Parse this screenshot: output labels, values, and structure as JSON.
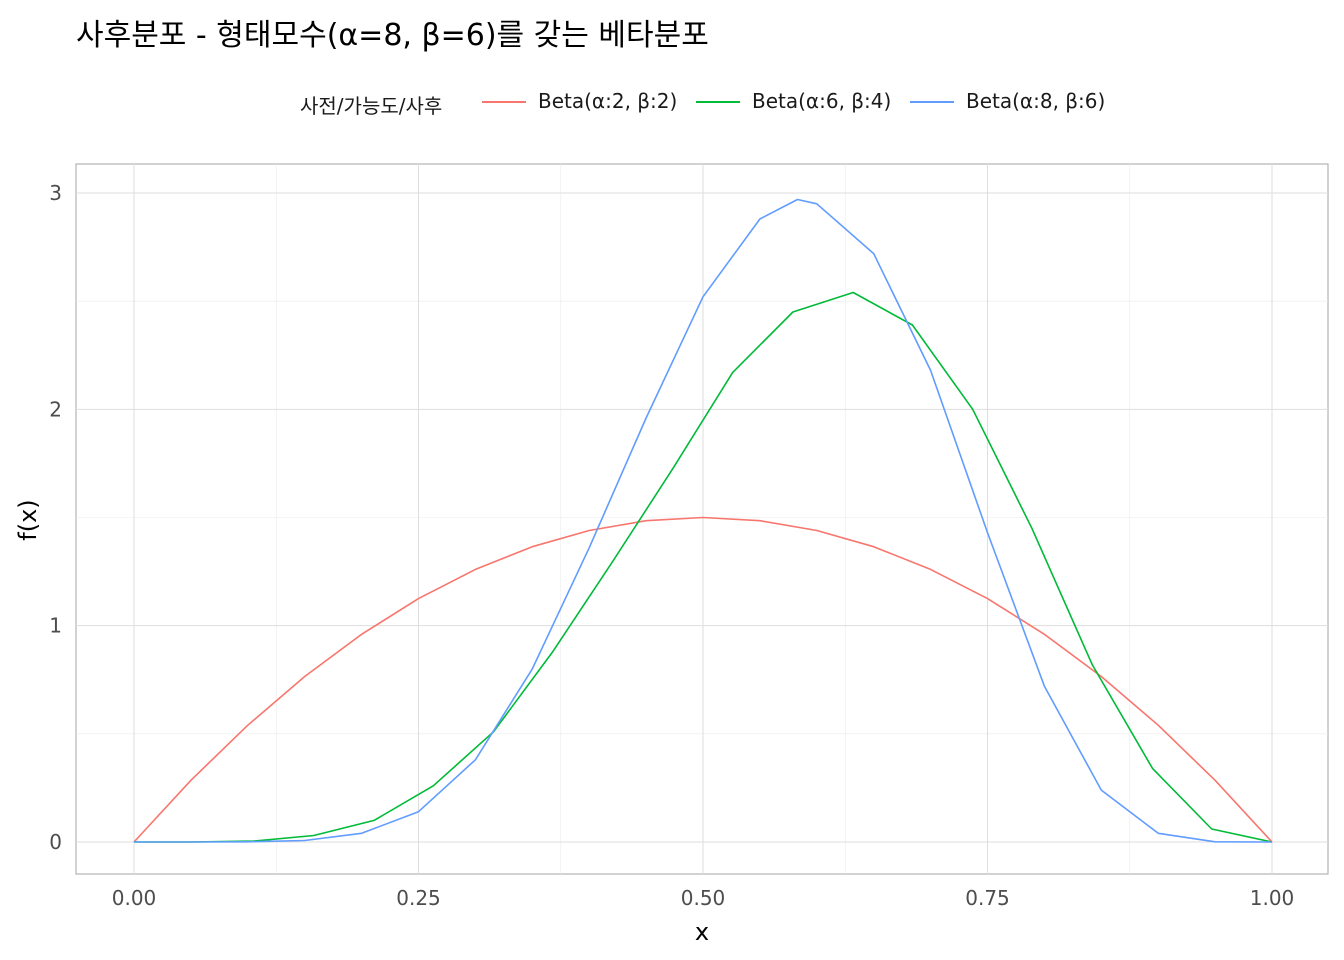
{
  "chart_data": {
    "type": "line",
    "title": "사후분포 - 형태모수(α=8, β=6)를 갖는 베타분포",
    "xlabel": "x",
    "ylabel": "f(x)",
    "xlim": [
      0,
      1
    ],
    "ylim": [
      0,
      3
    ],
    "x_ticks": [
      "0.00",
      "0.25",
      "0.50",
      "0.75",
      "1.00"
    ],
    "y_ticks": [
      "0",
      "1",
      "2",
      "3"
    ],
    "grid": true,
    "legend": {
      "title": "사전/가능도/사후",
      "placement": "top"
    },
    "series": [
      {
        "name": "Beta(α:2, β:2)",
        "color": "#F8766D",
        "x": [
          0,
          0.05,
          0.1,
          0.15,
          0.2,
          0.25,
          0.3,
          0.35,
          0.4,
          0.45,
          0.5,
          0.55,
          0.6,
          0.65,
          0.7,
          0.75,
          0.8,
          0.85,
          0.9,
          0.95,
          1
        ],
        "y": [
          0,
          0.285,
          0.54,
          0.765,
          0.96,
          1.125,
          1.26,
          1.365,
          1.44,
          1.485,
          1.5,
          1.485,
          1.44,
          1.365,
          1.26,
          1.125,
          0.96,
          0.765,
          0.54,
          0.285,
          0
        ]
      },
      {
        "name": "Beta(α:6, β:4)",
        "color": "#00BA38",
        "x": [
          0,
          0.05,
          0.105,
          0.158,
          0.211,
          0.263,
          0.316,
          0.368,
          0.421,
          0.474,
          0.526,
          0.579,
          0.632,
          0.684,
          0.737,
          0.789,
          0.842,
          0.895,
          0.947,
          1
        ],
        "y": [
          0,
          0,
          0.004,
          0.03,
          0.1,
          0.26,
          0.51,
          0.88,
          1.3,
          1.73,
          2.17,
          2.45,
          2.54,
          2.39,
          2.0,
          1.45,
          0.82,
          0.34,
          0.06,
          0
        ]
      },
      {
        "name": "Beta(α:8, β:6)",
        "color": "#619CFF",
        "x": [
          0,
          0.05,
          0.1,
          0.15,
          0.2,
          0.25,
          0.3,
          0.35,
          0.4,
          0.45,
          0.5,
          0.55,
          0.583,
          0.6,
          0.65,
          0.7,
          0.75,
          0.8,
          0.85,
          0.9,
          0.95,
          1
        ],
        "y": [
          0,
          0,
          0.0007,
          0.007,
          0.04,
          0.14,
          0.38,
          0.8,
          1.36,
          1.96,
          2.52,
          2.88,
          2.97,
          2.95,
          2.72,
          2.18,
          1.43,
          0.72,
          0.24,
          0.04,
          0.001,
          0
        ]
      }
    ]
  }
}
